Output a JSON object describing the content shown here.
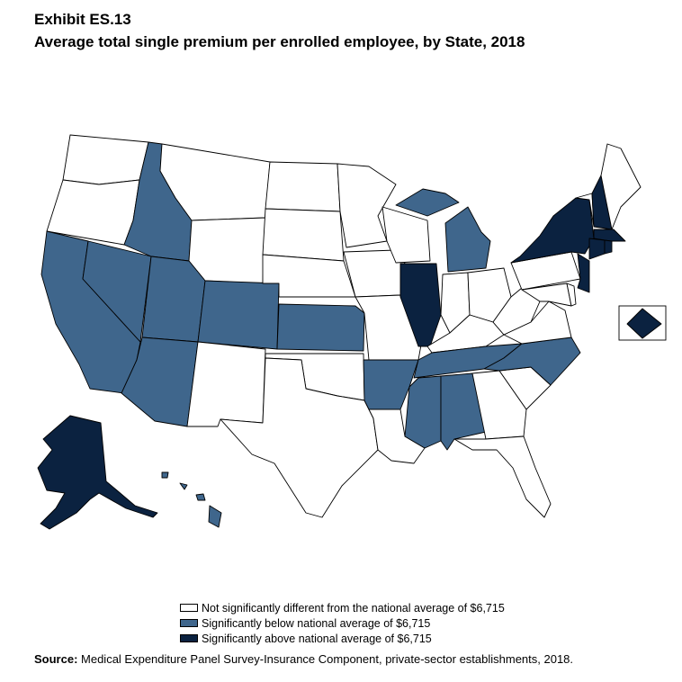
{
  "header": {
    "exhibit": "Exhibit ES.13",
    "title": "Average total single premium per enrolled employee, by State, 2018"
  },
  "colors": {
    "not_different": "#ffffff",
    "below": "#3f668c",
    "above": "#0b2240",
    "border": "#000000"
  },
  "categories": {
    "not_different": "Not significantly different from the national average of  $6,715",
    "below": "Significantly below national average of  $6,715",
    "above": "Significantly above national average of  $6,715"
  },
  "states": {
    "WA": "not_different",
    "OR": "not_different",
    "CA": "below",
    "NV": "below",
    "ID": "below",
    "MT": "not_different",
    "WY": "not_different",
    "UT": "below",
    "AZ": "below",
    "CO": "below",
    "NM": "not_different",
    "ND": "not_different",
    "SD": "not_different",
    "NE": "not_different",
    "KS": "below",
    "OK": "not_different",
    "TX": "not_different",
    "MN": "not_different",
    "IA": "not_different",
    "MO": "not_different",
    "AR": "below",
    "LA": "not_different",
    "WI": "not_different",
    "IL": "above",
    "MI": "below",
    "IN": "not_different",
    "OH": "not_different",
    "KY": "not_different",
    "TN": "below",
    "MS": "below",
    "AL": "below",
    "GA": "not_different",
    "FL": "not_different",
    "SC": "not_different",
    "NC": "below",
    "VA": "not_different",
    "WV": "not_different",
    "PA": "not_different",
    "NY": "above",
    "VT": "not_different",
    "NH": "above",
    "ME": "not_different",
    "MA": "above",
    "RI": "above",
    "CT": "above",
    "NJ": "above",
    "DE": "not_different",
    "MD": "not_different",
    "DC": "above",
    "AK": "above",
    "HI": "below"
  },
  "source": {
    "label": "Source:",
    "text": " Medical Expenditure Panel Survey-Insurance Component, private-sector establishments, 2018."
  }
}
